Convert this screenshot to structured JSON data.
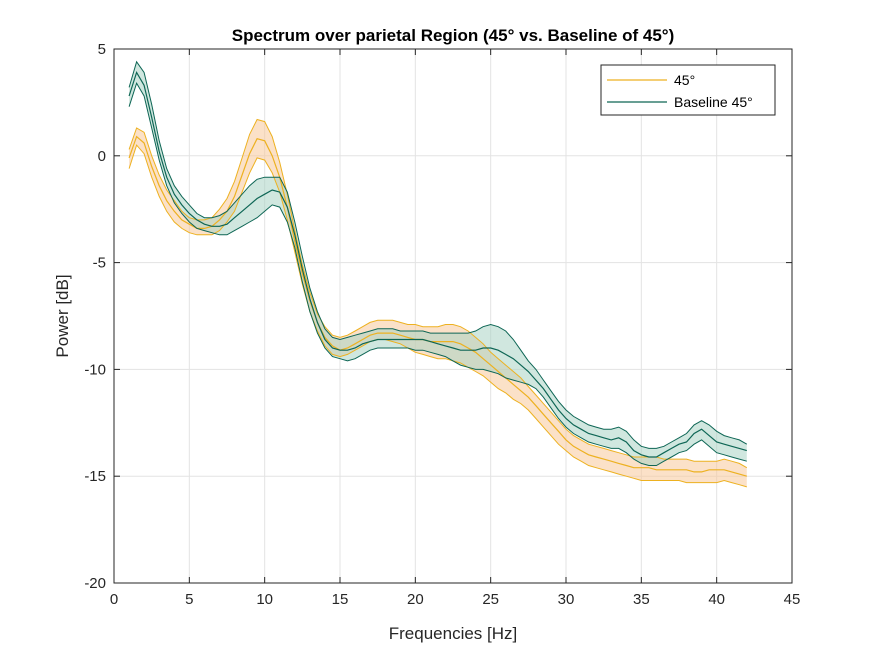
{
  "chart_data": {
    "type": "line",
    "title": "Spectrum over parietal Region (45° vs. Baseline of 45°)",
    "xlabel": "Frequencies [Hz]",
    "ylabel": "Power [dB]",
    "xlim": [
      0,
      45
    ],
    "ylim": [
      -20,
      5
    ],
    "xticks": [
      0,
      5,
      10,
      15,
      20,
      25,
      30,
      35,
      40,
      45
    ],
    "yticks": [
      -20,
      -15,
      -10,
      -5,
      0,
      5
    ],
    "grid": true,
    "legend_position": "top-right",
    "legend": [
      "45°",
      "Baseline 45°"
    ],
    "x": [
      1,
      1.5,
      2,
      2.5,
      3,
      3.5,
      4,
      4.5,
      5,
      5.5,
      6,
      6.5,
      7,
      7.5,
      8,
      8.5,
      9,
      9.5,
      10,
      10.5,
      11,
      11.5,
      12,
      12.5,
      13,
      13.5,
      14,
      14.5,
      15,
      15.5,
      16,
      16.5,
      17,
      17.5,
      18,
      18.5,
      19,
      19.5,
      20,
      20.5,
      21,
      21.5,
      22,
      22.5,
      23,
      23.5,
      24,
      24.5,
      25,
      25.5,
      26,
      26.5,
      27,
      27.5,
      28,
      28.5,
      29,
      29.5,
      30,
      30.5,
      31,
      31.5,
      32,
      32.5,
      33,
      33.5,
      34,
      34.5,
      35,
      35.5,
      36,
      36.5,
      37,
      37.5,
      38,
      38.5,
      39,
      39.5,
      40,
      40.5,
      41,
      41.5,
      42
    ],
    "series": [
      {
        "name": "45°",
        "color": "#EDB120",
        "fill": "#F7C89A",
        "mean": [
          -0.1,
          0.9,
          0.6,
          -0.5,
          -1.4,
          -2.1,
          -2.6,
          -3.0,
          -3.2,
          -3.4,
          -3.4,
          -3.3,
          -3.0,
          -2.6,
          -1.9,
          -0.9,
          0.1,
          0.8,
          0.7,
          0.0,
          -1.0,
          -2.4,
          -4.0,
          -5.5,
          -6.8,
          -7.8,
          -8.5,
          -8.9,
          -9.1,
          -9.0,
          -8.8,
          -8.6,
          -8.4,
          -8.3,
          -8.3,
          -8.3,
          -8.4,
          -8.5,
          -8.6,
          -8.6,
          -8.7,
          -8.7,
          -8.7,
          -8.7,
          -8.8,
          -9.0,
          -9.2,
          -9.5,
          -9.8,
          -10.1,
          -10.4,
          -10.7,
          -11.0,
          -11.3,
          -11.7,
          -12.1,
          -12.5,
          -12.9,
          -13.3,
          -13.6,
          -13.8,
          -14.0,
          -14.1,
          -14.2,
          -14.3,
          -14.4,
          -14.5,
          -14.6,
          -14.6,
          -14.6,
          -14.7,
          -14.7,
          -14.7,
          -14.7,
          -14.7,
          -14.8,
          -14.8,
          -14.7,
          -14.7,
          -14.7,
          -14.8,
          -14.9,
          -15.0
        ],
        "upper": [
          0.3,
          1.3,
          1.1,
          0.0,
          -0.9,
          -1.6,
          -2.1,
          -2.6,
          -2.9,
          -3.0,
          -3.0,
          -2.9,
          -2.5,
          -2.0,
          -1.2,
          -0.1,
          1.0,
          1.7,
          1.6,
          0.9,
          -0.3,
          -1.8,
          -3.5,
          -5.1,
          -6.4,
          -7.4,
          -8.0,
          -8.4,
          -8.5,
          -8.4,
          -8.2,
          -8.0,
          -7.8,
          -7.7,
          -7.7,
          -7.7,
          -7.8,
          -7.9,
          -7.9,
          -8.0,
          -8.0,
          -8.0,
          -7.9,
          -7.9,
          -8.0,
          -8.2,
          -8.5,
          -8.8,
          -9.2,
          -9.5,
          -9.8,
          -10.1,
          -10.4,
          -10.8,
          -11.2,
          -11.6,
          -12.0,
          -12.4,
          -12.8,
          -13.1,
          -13.3,
          -13.5,
          -13.6,
          -13.7,
          -13.8,
          -13.9,
          -14.0,
          -14.1,
          -14.1,
          -14.1,
          -14.1,
          -14.2,
          -14.2,
          -14.2,
          -14.2,
          -14.3,
          -14.3,
          -14.3,
          -14.3,
          -14.2,
          -14.3,
          -14.4,
          -14.6
        ],
        "lower": [
          -0.6,
          0.5,
          0.1,
          -1.0,
          -1.9,
          -2.6,
          -3.1,
          -3.4,
          -3.6,
          -3.7,
          -3.7,
          -3.7,
          -3.5,
          -3.1,
          -2.6,
          -1.7,
          -0.8,
          -0.1,
          -0.2,
          -0.8,
          -1.7,
          -3.0,
          -4.5,
          -6.0,
          -7.3,
          -8.2,
          -8.9,
          -9.3,
          -9.4,
          -9.3,
          -9.1,
          -8.9,
          -8.7,
          -8.6,
          -8.6,
          -8.7,
          -8.8,
          -9.0,
          -9.2,
          -9.3,
          -9.4,
          -9.5,
          -9.5,
          -9.6,
          -9.7,
          -9.9,
          -10.1,
          -10.3,
          -10.6,
          -10.9,
          -11.1,
          -11.4,
          -11.6,
          -11.9,
          -12.3,
          -12.7,
          -13.1,
          -13.5,
          -13.8,
          -14.1,
          -14.3,
          -14.5,
          -14.6,
          -14.7,
          -14.8,
          -14.9,
          -15.0,
          -15.1,
          -15.2,
          -15.2,
          -15.2,
          -15.2,
          -15.2,
          -15.2,
          -15.3,
          -15.3,
          -15.3,
          -15.3,
          -15.3,
          -15.2,
          -15.3,
          -15.4,
          -15.5
        ]
      },
      {
        "name": "Baseline 45°",
        "color": "#0E6655",
        "fill": "#A9D3C4",
        "mean": [
          2.8,
          3.9,
          3.3,
          1.8,
          0.2,
          -1.0,
          -1.8,
          -2.3,
          -2.7,
          -3.0,
          -3.2,
          -3.3,
          -3.3,
          -3.2,
          -2.9,
          -2.6,
          -2.3,
          -2.0,
          -1.8,
          -1.6,
          -1.7,
          -2.4,
          -3.7,
          -5.3,
          -6.7,
          -7.8,
          -8.6,
          -9.0,
          -9.1,
          -9.1,
          -9.0,
          -8.8,
          -8.7,
          -8.6,
          -8.6,
          -8.6,
          -8.6,
          -8.6,
          -8.6,
          -8.6,
          -8.7,
          -8.8,
          -8.9,
          -9.0,
          -9.1,
          -9.1,
          -9.1,
          -9.0,
          -9.0,
          -9.1,
          -9.3,
          -9.5,
          -9.8,
          -10.1,
          -10.5,
          -10.9,
          -11.4,
          -11.9,
          -12.3,
          -12.6,
          -12.8,
          -13.0,
          -13.1,
          -13.2,
          -13.3,
          -13.2,
          -13.4,
          -13.8,
          -14.0,
          -14.1,
          -14.1,
          -13.9,
          -13.7,
          -13.5,
          -13.4,
          -13.0,
          -12.8,
          -13.1,
          -13.4,
          -13.5,
          -13.6,
          -13.7,
          -13.8
        ],
        "upper": [
          3.2,
          4.4,
          3.9,
          2.4,
          0.7,
          -0.6,
          -1.4,
          -1.9,
          -2.3,
          -2.7,
          -2.9,
          -2.9,
          -2.8,
          -2.6,
          -2.2,
          -1.8,
          -1.4,
          -1.1,
          -1.0,
          -1.0,
          -1.0,
          -1.7,
          -3.1,
          -4.7,
          -6.2,
          -7.3,
          -8.1,
          -8.5,
          -8.6,
          -8.5,
          -8.4,
          -8.3,
          -8.2,
          -8.1,
          -8.1,
          -8.1,
          -8.2,
          -8.2,
          -8.2,
          -8.2,
          -8.3,
          -8.3,
          -8.3,
          -8.3,
          -8.3,
          -8.3,
          -8.2,
          -8.0,
          -7.9,
          -8.0,
          -8.2,
          -8.6,
          -9.1,
          -9.6,
          -10.0,
          -10.5,
          -11.0,
          -11.5,
          -11.9,
          -12.2,
          -12.4,
          -12.6,
          -12.7,
          -12.8,
          -12.8,
          -12.7,
          -12.9,
          -13.3,
          -13.6,
          -13.7,
          -13.7,
          -13.6,
          -13.4,
          -13.2,
          -13.0,
          -12.6,
          -12.4,
          -12.6,
          -12.9,
          -13.1,
          -13.2,
          -13.3,
          -13.5
        ],
        "lower": [
          2.3,
          3.4,
          2.8,
          1.3,
          -0.2,
          -1.4,
          -2.2,
          -2.7,
          -3.1,
          -3.4,
          -3.5,
          -3.6,
          -3.7,
          -3.7,
          -3.5,
          -3.3,
          -3.1,
          -2.9,
          -2.6,
          -2.3,
          -2.4,
          -3.1,
          -4.3,
          -5.9,
          -7.3,
          -8.3,
          -9.0,
          -9.4,
          -9.5,
          -9.6,
          -9.5,
          -9.3,
          -9.1,
          -9.0,
          -9.0,
          -9.0,
          -9.0,
          -9.0,
          -9.1,
          -9.1,
          -9.2,
          -9.3,
          -9.4,
          -9.6,
          -9.8,
          -9.9,
          -10.0,
          -10.0,
          -10.1,
          -10.2,
          -10.4,
          -10.5,
          -10.6,
          -10.7,
          -10.9,
          -11.3,
          -11.8,
          -12.3,
          -12.7,
          -13.0,
          -13.2,
          -13.4,
          -13.5,
          -13.6,
          -13.7,
          -13.7,
          -13.9,
          -14.2,
          -14.4,
          -14.5,
          -14.5,
          -14.3,
          -14.1,
          -13.9,
          -13.8,
          -13.5,
          -13.3,
          -13.6,
          -13.9,
          -14.0,
          -14.1,
          -14.2,
          -14.3
        ]
      }
    ]
  }
}
